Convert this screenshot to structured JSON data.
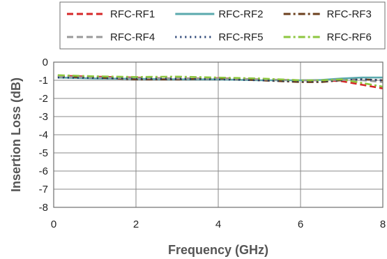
{
  "chart_data": {
    "type": "line",
    "xlabel": "Frequency (GHz)",
    "ylabel": "Insertion Loss (dB)",
    "xlim": [
      0,
      8
    ],
    "ylim": [
      -8,
      0
    ],
    "xticks": [
      0,
      2,
      4,
      6,
      8
    ],
    "yticks": [
      0,
      -1,
      -2,
      -3,
      -4,
      -5,
      -6,
      -7,
      -8
    ],
    "grid": "horizontal",
    "legend_position": "top",
    "series": [
      {
        "name": "RFC-RF1",
        "color": "#d62728",
        "dash": "dashed",
        "x": [
          0.1,
          1,
          2,
          3,
          4,
          5,
          6,
          6.5,
          7,
          7.5,
          8
        ],
        "y": [
          -0.75,
          -0.8,
          -0.85,
          -0.9,
          -0.88,
          -0.95,
          -1.0,
          -1.0,
          -1.05,
          -1.25,
          -1.45
        ]
      },
      {
        "name": "RFC-RF2",
        "color": "#5aa9ad",
        "dash": "solid",
        "x": [
          0.1,
          1,
          2,
          3,
          4,
          5,
          6,
          6.5,
          7,
          7.5,
          8
        ],
        "y": [
          -0.85,
          -0.9,
          -0.92,
          -0.95,
          -0.95,
          -1.0,
          -1.0,
          -0.98,
          -0.9,
          -0.85,
          -0.85
        ]
      },
      {
        "name": "RFC-RF3",
        "color": "#6b3f1c",
        "dash": "dashdot",
        "x": [
          0.1,
          1,
          2,
          3,
          4,
          5,
          6,
          6.5,
          7,
          7.5,
          8
        ],
        "y": [
          -0.8,
          -0.85,
          -0.95,
          -0.95,
          -0.9,
          -1.0,
          -1.1,
          -1.1,
          -1.0,
          -0.95,
          -1.0
        ]
      },
      {
        "name": "RFC-RF4",
        "color": "#9a9a9a",
        "dash": "dashed",
        "x": [
          0.1,
          1,
          2,
          3,
          4,
          5,
          6,
          6.5,
          7,
          7.5,
          8
        ],
        "y": [
          -0.8,
          -0.85,
          -0.88,
          -0.9,
          -0.9,
          -0.95,
          -1.0,
          -1.0,
          -0.98,
          -1.0,
          -1.1
        ]
      },
      {
        "name": "RFC-RF5",
        "color": "#1f3a6e",
        "dash": "dotted",
        "x": [
          0.1,
          1,
          2,
          3,
          4,
          5,
          6,
          6.5,
          7,
          7.5,
          8
        ],
        "y": [
          -0.85,
          -0.88,
          -0.9,
          -0.92,
          -0.95,
          -1.0,
          -1.05,
          -1.05,
          -1.0,
          -0.95,
          -1.0
        ]
      },
      {
        "name": "RFC-RF6",
        "color": "#8dc63f",
        "dash": "dashdot",
        "x": [
          0.1,
          1,
          2,
          3,
          4,
          5,
          6,
          6.5,
          7,
          7.5,
          8
        ],
        "y": [
          -0.72,
          -0.78,
          -0.82,
          -0.8,
          -0.85,
          -0.9,
          -1.0,
          -1.0,
          -0.95,
          -1.15,
          -1.35
        ]
      }
    ]
  }
}
